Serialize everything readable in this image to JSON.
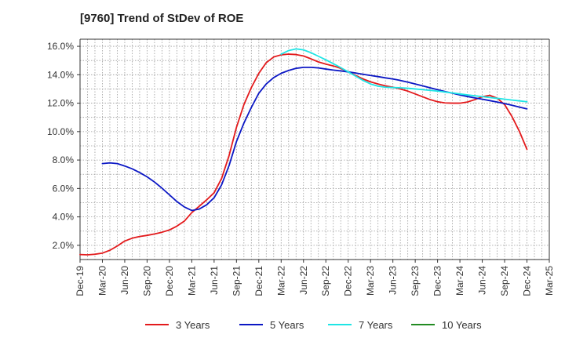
{
  "chart_data": {
    "type": "line",
    "title": "[9760]  Trend of StDev of ROE",
    "xlabel": "",
    "ylabel": "",
    "x_tick_labels": [
      "Dec-19",
      "Mar-20",
      "Jun-20",
      "Sep-20",
      "Dec-20",
      "Mar-21",
      "Jun-21",
      "Sep-21",
      "Dec-21",
      "Mar-22",
      "Jun-22",
      "Sep-22",
      "Dec-22",
      "Mar-23",
      "Jun-23",
      "Sep-23",
      "Dec-23",
      "Mar-24",
      "Jun-24",
      "Sep-24",
      "Dec-24",
      "Mar-25"
    ],
    "y_tick_labels": [
      "2.0%",
      "4.0%",
      "6.0%",
      "8.0%",
      "10.0%",
      "12.0%",
      "14.0%",
      "16.0%"
    ],
    "ylim": [
      1.0,
      16.5
    ],
    "grid": true,
    "legend_position": "bottom",
    "series": [
      {
        "name": "3 Years",
        "color": "#e31a1c",
        "points": [
          {
            "x": "Dec-19",
            "y": 1.35
          },
          {
            "x": "Jan-20",
            "y": 1.33
          },
          {
            "x": "Feb-20",
            "y": 1.37
          },
          {
            "x": "Mar-20",
            "y": 1.45
          },
          {
            "x": "Apr-20",
            "y": 1.65
          },
          {
            "x": "May-20",
            "y": 1.95
          },
          {
            "x": "Jun-20",
            "y": 2.3
          },
          {
            "x": "Jul-20",
            "y": 2.5
          },
          {
            "x": "Aug-20",
            "y": 2.62
          },
          {
            "x": "Sep-20",
            "y": 2.7
          },
          {
            "x": "Oct-20",
            "y": 2.8
          },
          {
            "x": "Nov-20",
            "y": 2.92
          },
          {
            "x": "Dec-20",
            "y": 3.08
          },
          {
            "x": "Jan-21",
            "y": 3.35
          },
          {
            "x": "Feb-21",
            "y": 3.7
          },
          {
            "x": "Mar-21",
            "y": 4.3
          },
          {
            "x": "Apr-21",
            "y": 4.75
          },
          {
            "x": "May-21",
            "y": 5.2
          },
          {
            "x": "Jun-21",
            "y": 5.7
          },
          {
            "x": "Jul-21",
            "y": 6.7
          },
          {
            "x": "Aug-21",
            "y": 8.3
          },
          {
            "x": "Sep-21",
            "y": 10.3
          },
          {
            "x": "Oct-21",
            "y": 11.9
          },
          {
            "x": "Nov-21",
            "y": 13.1
          },
          {
            "x": "Dec-21",
            "y": 14.1
          },
          {
            "x": "Jan-22",
            "y": 14.85
          },
          {
            "x": "Feb-22",
            "y": 15.25
          },
          {
            "x": "Mar-22",
            "y": 15.4
          },
          {
            "x": "Apr-22",
            "y": 15.45
          },
          {
            "x": "May-22",
            "y": 15.42
          },
          {
            "x": "Jun-22",
            "y": 15.32
          },
          {
            "x": "Jul-22",
            "y": 15.12
          },
          {
            "x": "Aug-22",
            "y": 14.9
          },
          {
            "x": "Sep-22",
            "y": 14.75
          },
          {
            "x": "Oct-22",
            "y": 14.62
          },
          {
            "x": "Nov-22",
            "y": 14.45
          },
          {
            "x": "Dec-22",
            "y": 14.2
          },
          {
            "x": "Jan-23",
            "y": 13.95
          },
          {
            "x": "Feb-23",
            "y": 13.7
          },
          {
            "x": "Mar-23",
            "y": 13.5
          },
          {
            "x": "Apr-23",
            "y": 13.35
          },
          {
            "x": "May-23",
            "y": 13.22
          },
          {
            "x": "Jun-23",
            "y": 13.12
          },
          {
            "x": "Jul-23",
            "y": 13.0
          },
          {
            "x": "Aug-23",
            "y": 12.85
          },
          {
            "x": "Sep-23",
            "y": 12.65
          },
          {
            "x": "Oct-23",
            "y": 12.45
          },
          {
            "x": "Nov-23",
            "y": 12.25
          },
          {
            "x": "Dec-23",
            "y": 12.1
          },
          {
            "x": "Jan-24",
            "y": 12.02
          },
          {
            "x": "Feb-24",
            "y": 12.0
          },
          {
            "x": "Mar-24",
            "y": 12.0
          },
          {
            "x": "Apr-24",
            "y": 12.08
          },
          {
            "x": "May-24",
            "y": 12.25
          },
          {
            "x": "Jun-24",
            "y": 12.45
          },
          {
            "x": "Jul-24",
            "y": 12.55
          },
          {
            "x": "Aug-24",
            "y": 12.35
          },
          {
            "x": "Sep-24",
            "y": 11.9
          },
          {
            "x": "Oct-24",
            "y": 11.05
          },
          {
            "x": "Nov-24",
            "y": 10.0
          },
          {
            "x": "Dec-24",
            "y": 8.75
          }
        ]
      },
      {
        "name": "5 Years",
        "color": "#0b17c4",
        "points": [
          {
            "x": "Mar-20",
            "y": 7.75
          },
          {
            "x": "Apr-20",
            "y": 7.8
          },
          {
            "x": "May-20",
            "y": 7.75
          },
          {
            "x": "Jun-20",
            "y": 7.58
          },
          {
            "x": "Jul-20",
            "y": 7.38
          },
          {
            "x": "Aug-20",
            "y": 7.12
          },
          {
            "x": "Sep-20",
            "y": 6.82
          },
          {
            "x": "Oct-20",
            "y": 6.45
          },
          {
            "x": "Nov-20",
            "y": 6.02
          },
          {
            "x": "Dec-20",
            "y": 5.55
          },
          {
            "x": "Jan-21",
            "y": 5.08
          },
          {
            "x": "Feb-21",
            "y": 4.7
          },
          {
            "x": "Mar-21",
            "y": 4.45
          },
          {
            "x": "Apr-21",
            "y": 4.55
          },
          {
            "x": "May-21",
            "y": 4.85
          },
          {
            "x": "Jun-21",
            "y": 5.35
          },
          {
            "x": "Jul-21",
            "y": 6.25
          },
          {
            "x": "Aug-21",
            "y": 7.6
          },
          {
            "x": "Sep-21",
            "y": 9.3
          },
          {
            "x": "Oct-21",
            "y": 10.6
          },
          {
            "x": "Nov-21",
            "y": 11.7
          },
          {
            "x": "Dec-21",
            "y": 12.7
          },
          {
            "x": "Jan-22",
            "y": 13.35
          },
          {
            "x": "Feb-22",
            "y": 13.8
          },
          {
            "x": "Mar-22",
            "y": 14.1
          },
          {
            "x": "Apr-22",
            "y": 14.3
          },
          {
            "x": "May-22",
            "y": 14.45
          },
          {
            "x": "Jun-22",
            "y": 14.52
          },
          {
            "x": "Jul-22",
            "y": 14.52
          },
          {
            "x": "Aug-22",
            "y": 14.48
          },
          {
            "x": "Sep-22",
            "y": 14.4
          },
          {
            "x": "Oct-22",
            "y": 14.33
          },
          {
            "x": "Nov-22",
            "y": 14.27
          },
          {
            "x": "Dec-22",
            "y": 14.2
          },
          {
            "x": "Jan-23",
            "y": 14.12
          },
          {
            "x": "Feb-23",
            "y": 14.03
          },
          {
            "x": "Mar-23",
            "y": 13.95
          },
          {
            "x": "Apr-23",
            "y": 13.87
          },
          {
            "x": "May-23",
            "y": 13.78
          },
          {
            "x": "Jun-23",
            "y": 13.7
          },
          {
            "x": "Jul-23",
            "y": 13.6
          },
          {
            "x": "Aug-23",
            "y": 13.48
          },
          {
            "x": "Sep-23",
            "y": 13.35
          },
          {
            "x": "Oct-23",
            "y": 13.22
          },
          {
            "x": "Nov-23",
            "y": 13.08
          },
          {
            "x": "Dec-23",
            "y": 12.95
          },
          {
            "x": "Jan-24",
            "y": 12.82
          },
          {
            "x": "Feb-24",
            "y": 12.7
          },
          {
            "x": "Mar-24",
            "y": 12.58
          },
          {
            "x": "Apr-24",
            "y": 12.47
          },
          {
            "x": "May-24",
            "y": 12.37
          },
          {
            "x": "Jun-24",
            "y": 12.28
          },
          {
            "x": "Jul-24",
            "y": 12.18
          },
          {
            "x": "Aug-24",
            "y": 12.08
          },
          {
            "x": "Sep-24",
            "y": 11.97
          },
          {
            "x": "Oct-24",
            "y": 11.85
          },
          {
            "x": "Nov-24",
            "y": 11.72
          },
          {
            "x": "Dec-24",
            "y": 11.6
          }
        ]
      },
      {
        "name": "7 Years",
        "color": "#1ee5e5",
        "points": [
          {
            "x": "Mar-22",
            "y": 15.45
          },
          {
            "x": "Apr-22",
            "y": 15.7
          },
          {
            "x": "May-22",
            "y": 15.82
          },
          {
            "x": "Jun-22",
            "y": 15.75
          },
          {
            "x": "Jul-22",
            "y": 15.55
          },
          {
            "x": "Aug-22",
            "y": 15.3
          },
          {
            "x": "Sep-22",
            "y": 15.05
          },
          {
            "x": "Oct-22",
            "y": 14.78
          },
          {
            "x": "Nov-22",
            "y": 14.5
          },
          {
            "x": "Dec-22",
            "y": 14.2
          },
          {
            "x": "Jan-23",
            "y": 13.9
          },
          {
            "x": "Feb-23",
            "y": 13.6
          },
          {
            "x": "Mar-23",
            "y": 13.35
          },
          {
            "x": "Apr-23",
            "y": 13.2
          },
          {
            "x": "May-23",
            "y": 13.12
          },
          {
            "x": "Jun-23",
            "y": 13.1
          },
          {
            "x": "Jul-23",
            "y": 13.08
          },
          {
            "x": "Aug-23",
            "y": 13.05
          },
          {
            "x": "Sep-23",
            "y": 13.0
          },
          {
            "x": "Oct-23",
            "y": 12.95
          },
          {
            "x": "Nov-23",
            "y": 12.9
          },
          {
            "x": "Dec-23",
            "y": 12.85
          },
          {
            "x": "Jan-24",
            "y": 12.78
          },
          {
            "x": "Feb-24",
            "y": 12.72
          },
          {
            "x": "Mar-24",
            "y": 12.65
          },
          {
            "x": "Apr-24",
            "y": 12.58
          },
          {
            "x": "May-24",
            "y": 12.52
          },
          {
            "x": "Jun-24",
            "y": 12.46
          },
          {
            "x": "Jul-24",
            "y": 12.4
          },
          {
            "x": "Aug-24",
            "y": 12.34
          },
          {
            "x": "Sep-24",
            "y": 12.28
          },
          {
            "x": "Oct-24",
            "y": 12.22
          },
          {
            "x": "Nov-24",
            "y": 12.16
          },
          {
            "x": "Dec-24",
            "y": 12.1
          }
        ]
      },
      {
        "name": "10 Years",
        "color": "#228b22",
        "points": []
      }
    ]
  }
}
